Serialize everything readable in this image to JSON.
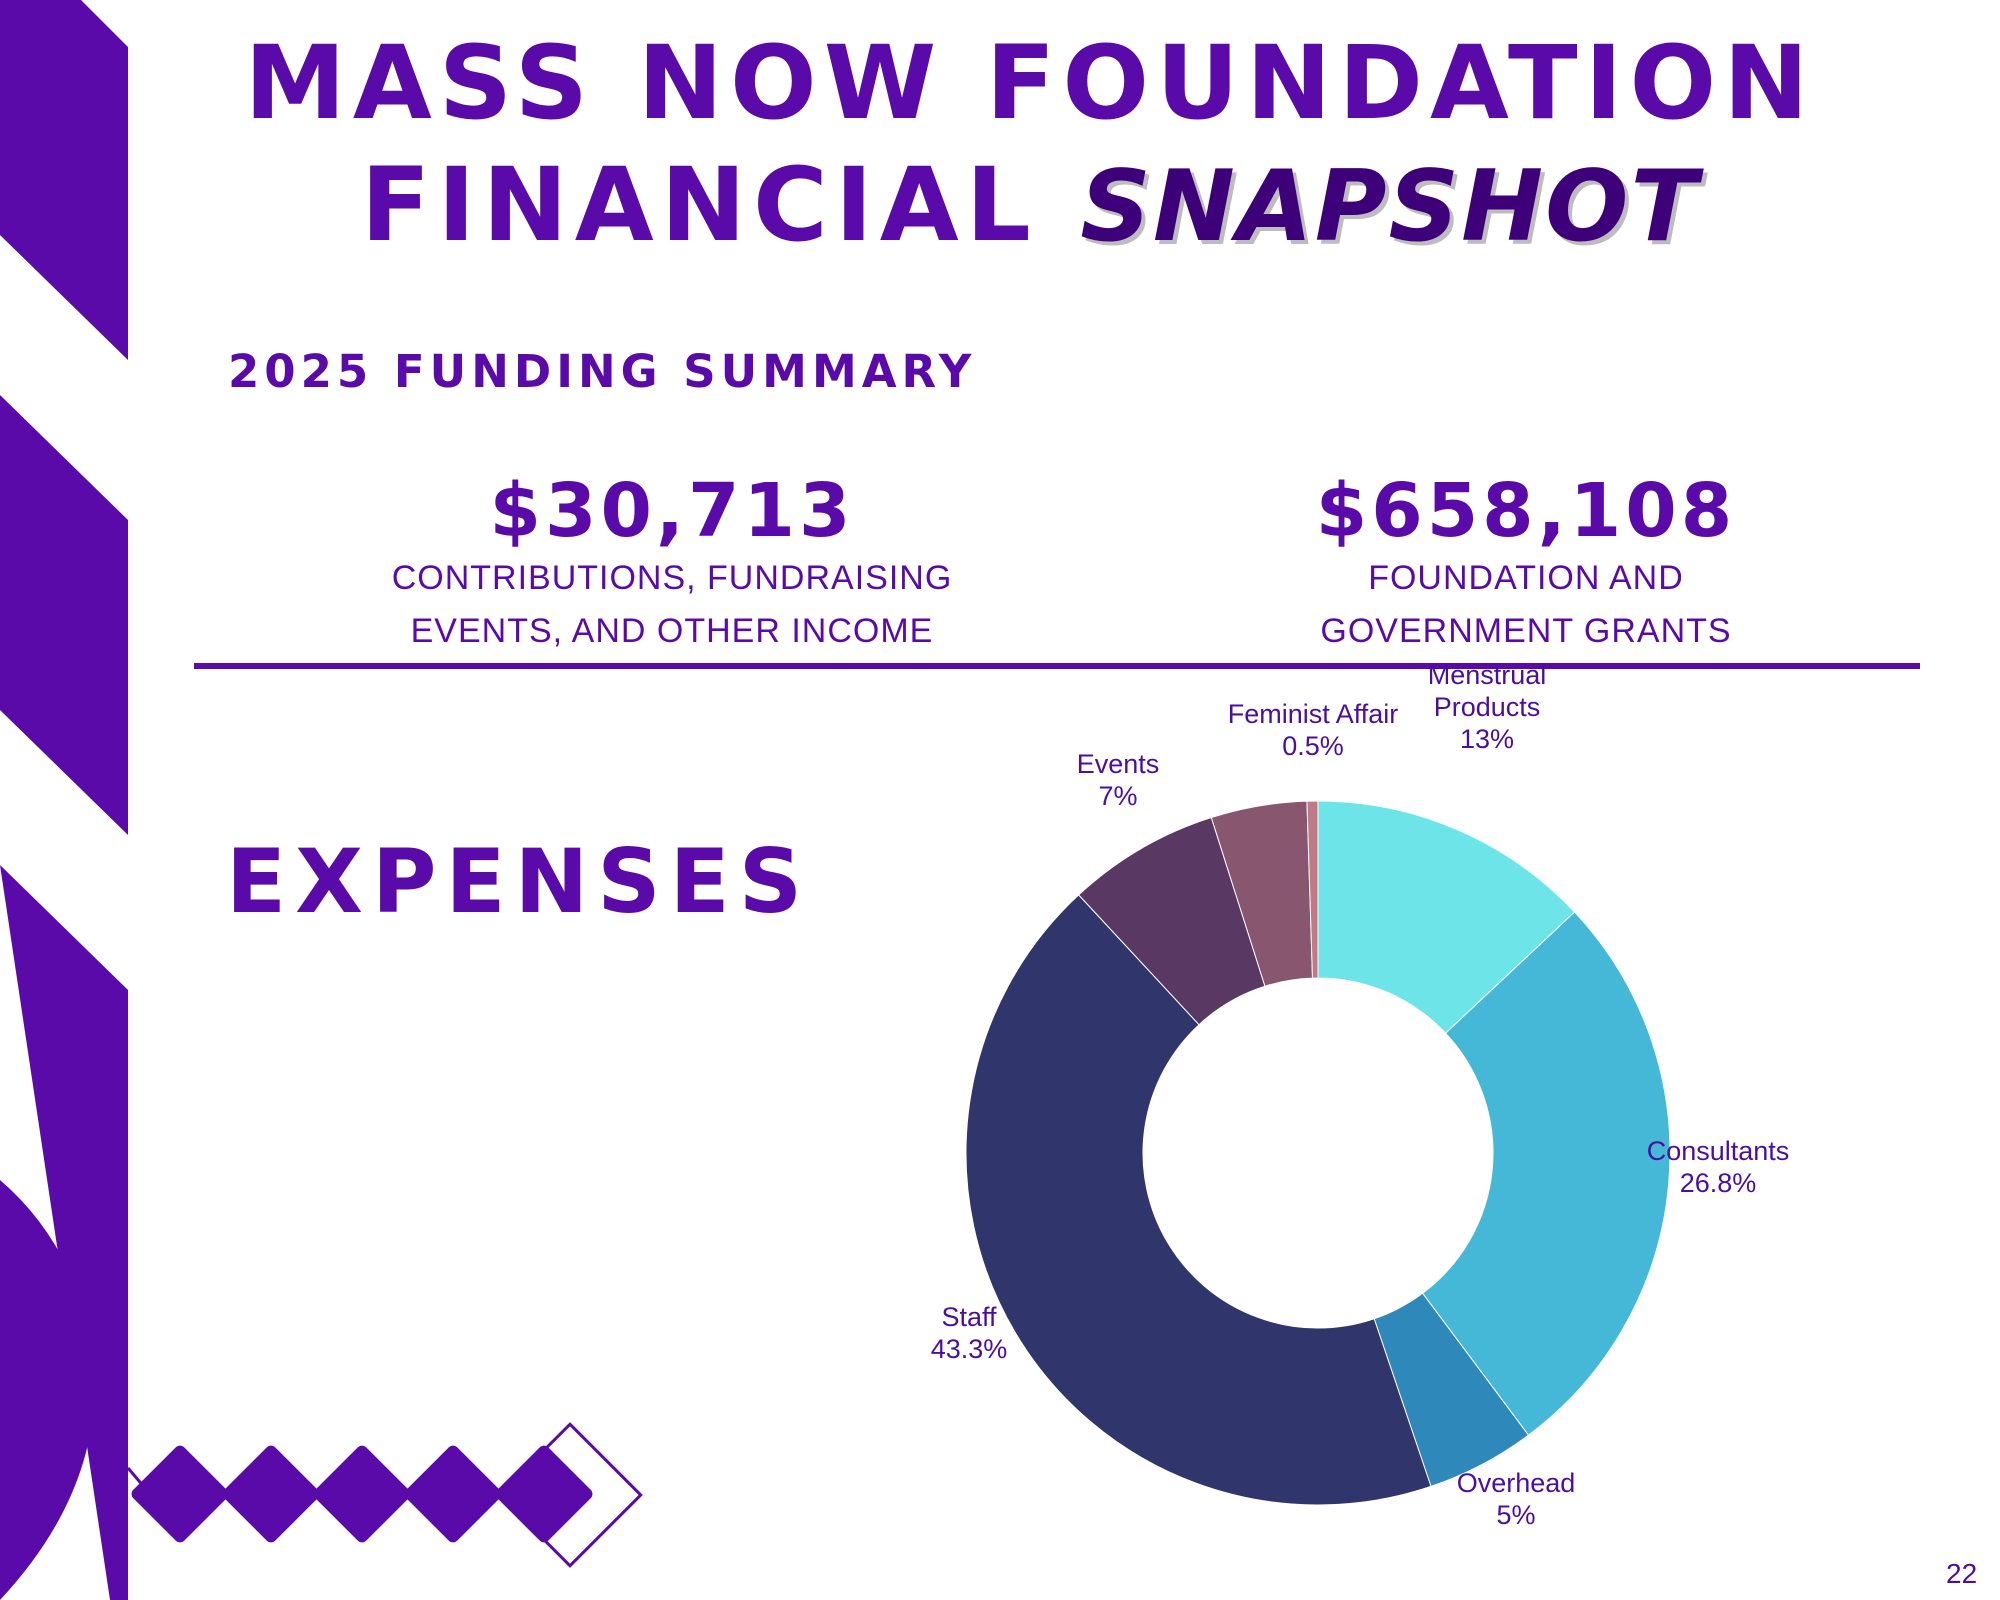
{
  "title": {
    "line1": "MASS NOW FOUNDATION",
    "line2_prefix": "FINANCIAL",
    "line2_script": "SNAPSHOT"
  },
  "summary": {
    "heading": "2025 FUNDING SUMMARY",
    "left_amount": "$30,713",
    "left_desc_line1": "CONTRIBUTIONS, FUNDRAISING",
    "left_desc_line2": "EVENTS, AND OTHER INCOME",
    "right_amount": "$658,108",
    "right_desc_line1": "FOUNDATION AND",
    "right_desc_line2": "GOVERNMENT GRANTS"
  },
  "expenses_heading": "EXPENSES",
  "page_number": "22",
  "colors": {
    "brand_purple": "#5a0aa8"
  },
  "chart_data": {
    "type": "pie",
    "donut": true,
    "start": "top, clockwise",
    "slices": [
      {
        "label": "Menstrual Products",
        "label_lines": [
          "Menstrual",
          "Products"
        ],
        "value": 13,
        "display": "13%",
        "color": "#6ce4e8"
      },
      {
        "label": "Consultants",
        "label_lines": [
          "Consultants"
        ],
        "value": 26.8,
        "display": "26.8%",
        "color": "#44b8d6"
      },
      {
        "label": "Overhead",
        "label_lines": [
          "Overhead"
        ],
        "value": 5,
        "display": "5%",
        "color": "#2e88ba"
      },
      {
        "label": "Staff",
        "label_lines": [
          "Staff"
        ],
        "value": 43.3,
        "display": "43.3%",
        "color": "#30356c"
      },
      {
        "label": "Events",
        "label_lines": [
          "Events"
        ],
        "value": 7,
        "display": "7%",
        "color": "#5a3864"
      },
      {
        "label": "Feminist Affair",
        "label_lines": [
          "Feminist Affair"
        ],
        "value": 4.4,
        "display": "",
        "color": "#89566f"
      },
      {
        "label": "Feminist Affair",
        "label_lines": [
          "Feminist Affair"
        ],
        "value": 0.5,
        "display": "0.5%",
        "color": "#c07a86"
      }
    ]
  }
}
